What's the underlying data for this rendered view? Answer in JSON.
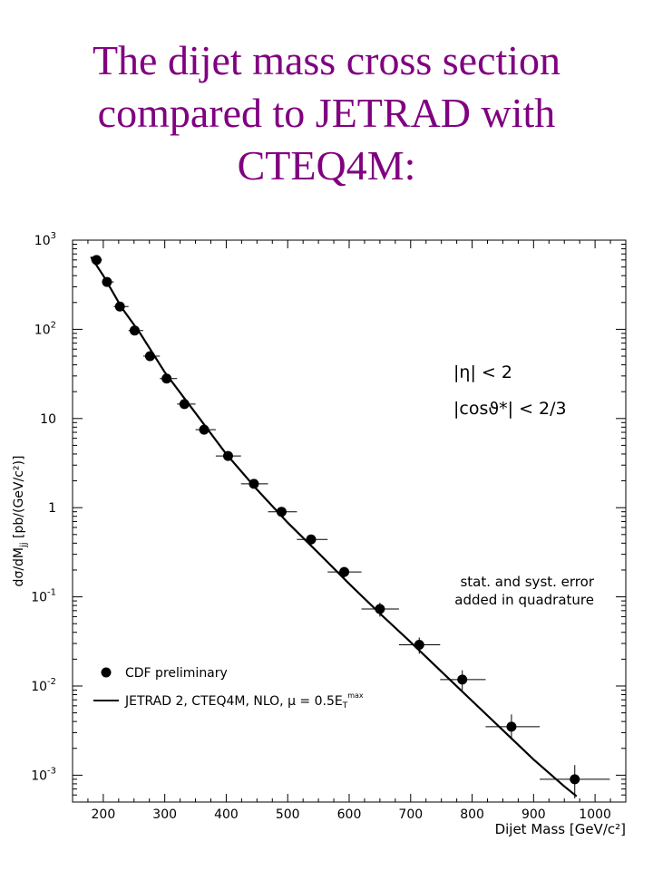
{
  "slide": {
    "title_lines": [
      "The dijet mass cross section",
      "compared to JETRAD with",
      "CTEQ4M:"
    ]
  },
  "chart_data": {
    "type": "scatter",
    "xlabel": "Dijet Mass [GeV/c²]",
    "ylabel": "dσ/dM",
    "ylabel_sub": "jj",
    "ylabel_unit": " [pb/(GeV/c²)]",
    "x_ticks": [
      200,
      300,
      400,
      500,
      600,
      700,
      800,
      900,
      1000
    ],
    "y_ticks": [
      {
        "value": 0.001,
        "base": "10",
        "exp": "-3"
      },
      {
        "value": 0.01,
        "base": "10",
        "exp": "-2"
      },
      {
        "value": 0.1,
        "base": "10",
        "exp": "-1"
      },
      {
        "value": 1,
        "base": "1",
        "exp": ""
      },
      {
        "value": 10,
        "base": "10",
        "exp": ""
      },
      {
        "value": 100,
        "base": "10",
        "exp": "2"
      },
      {
        "value": 1000,
        "base": "10",
        "exp": "3"
      }
    ],
    "xlim": [
      150,
      1050
    ],
    "ylim": [
      0.0005,
      1000
    ],
    "y_scale": "log",
    "series": [
      {
        "name": "CDF preliminary",
        "kind": "points",
        "points": [
          {
            "x": 189,
            "y": 600,
            "xlo": 180,
            "xhi": 198,
            "ylo": 540,
            "yhi": 660
          },
          {
            "x": 206,
            "y": 340,
            "xlo": 198,
            "xhi": 217,
            "ylo": 305,
            "yhi": 375
          },
          {
            "x": 227,
            "y": 180,
            "xlo": 217,
            "xhi": 241,
            "ylo": 162,
            "yhi": 198
          },
          {
            "x": 251,
            "y": 97,
            "xlo": 241,
            "xhi": 265,
            "ylo": 87,
            "yhi": 107
          },
          {
            "x": 276,
            "y": 50,
            "xlo": 265,
            "xhi": 292,
            "ylo": 45,
            "yhi": 55
          },
          {
            "x": 303,
            "y": 28,
            "xlo": 292,
            "xhi": 320,
            "ylo": 25,
            "yhi": 31
          },
          {
            "x": 332,
            "y": 14.5,
            "xlo": 320,
            "xhi": 350,
            "ylo": 13,
            "yhi": 16
          },
          {
            "x": 364,
            "y": 7.5,
            "xlo": 350,
            "xhi": 383,
            "ylo": 6.7,
            "yhi": 8.3
          },
          {
            "x": 403,
            "y": 3.8,
            "xlo": 383,
            "xhi": 424,
            "ylo": 3.4,
            "yhi": 4.2
          },
          {
            "x": 445,
            "y": 1.85,
            "xlo": 424,
            "xhi": 468,
            "ylo": 1.65,
            "yhi": 2.05
          },
          {
            "x": 490,
            "y": 0.9,
            "xlo": 468,
            "xhi": 515,
            "ylo": 0.8,
            "yhi": 1.0
          },
          {
            "x": 538,
            "y": 0.44,
            "xlo": 515,
            "xhi": 565,
            "ylo": 0.39,
            "yhi": 0.49
          },
          {
            "x": 592,
            "y": 0.19,
            "xlo": 565,
            "xhi": 620,
            "ylo": 0.165,
            "yhi": 0.215
          },
          {
            "x": 650,
            "y": 0.073,
            "xlo": 620,
            "xhi": 681,
            "ylo": 0.06,
            "yhi": 0.086
          },
          {
            "x": 714,
            "y": 0.029,
            "xlo": 681,
            "xhi": 748,
            "ylo": 0.023,
            "yhi": 0.035
          },
          {
            "x": 784,
            "y": 0.0118,
            "xlo": 748,
            "xhi": 822,
            "ylo": 0.009,
            "yhi": 0.015
          },
          {
            "x": 864,
            "y": 0.0035,
            "xlo": 822,
            "xhi": 910,
            "ylo": 0.0025,
            "yhi": 0.0048
          },
          {
            "x": 967,
            "y": 0.0009,
            "xlo": 910,
            "xhi": 1024,
            "ylo": 0.00055,
            "yhi": 0.0013
          }
        ]
      },
      {
        "name": "JETRAD 2, CTEQ4M, NLO, μ = 0.5E",
        "name_sub": "T",
        "name_sup": "max",
        "kind": "line",
        "x": [
          180,
          200,
          230,
          260,
          300,
          350,
          400,
          450,
          500,
          550,
          600,
          650,
          700,
          750,
          800,
          850,
          900,
          950,
          970
        ],
        "y": [
          650,
          400,
          175,
          90,
          33,
          11.5,
          4.0,
          1.6,
          0.68,
          0.31,
          0.14,
          0.065,
          0.031,
          0.0145,
          0.0068,
          0.0032,
          0.0015,
          0.00075,
          0.00058
        ]
      }
    ],
    "annotations": [
      {
        "text": "|η| < 2"
      },
      {
        "text": "|cosϑ*| < 2/3"
      },
      {
        "text": "stat. and syst. error"
      },
      {
        "text": "added in quadrature"
      }
    ],
    "legend_placement": "bottom-left",
    "grid": false
  }
}
